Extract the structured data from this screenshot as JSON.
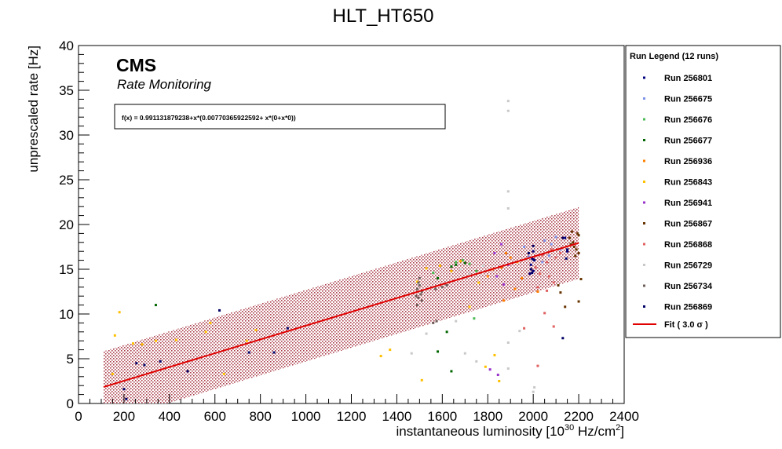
{
  "chart_data": {
    "type": "scatter",
    "title": "HLT_HT650",
    "xlabel": "instantaneous luminosity [10",
    "xlabel_sup": "30",
    "xlabel_mid": " Hz/cm",
    "xlabel_sup2": "2",
    "xlabel_end": "]",
    "ylabel": "unprescaled rate [Hz]",
    "xlim": [
      0,
      2400
    ],
    "ylim": [
      0,
      40
    ],
    "x_ticks": [
      0,
      200,
      400,
      600,
      800,
      1000,
      1200,
      1400,
      1600,
      1800,
      2000,
      2200,
      2400
    ],
    "y_ticks": [
      0,
      5,
      10,
      15,
      20,
      25,
      30,
      35,
      40
    ],
    "cms_label": "CMS",
    "cms_sublabel": "Rate Monitoring",
    "fit_formula": "f(x) = 0.991131879238+x*(0.00770365922592+ x*(0+x*0))",
    "fit": {
      "intercept": 0.991131879238,
      "slope": 0.00770365922592,
      "x_range": [
        110,
        2200
      ],
      "sigma": 3.0,
      "band_halfwidth": 4.0,
      "color": "#e00000",
      "band_color": "#9b1b2a"
    },
    "legend_title": "Run Legend (12 runs)",
    "legend_position": "right",
    "fit_legend_label": "Fit ( 3.0  σ )",
    "series": [
      {
        "name": "Run 256801",
        "color": "#00007f",
        "points": [
          [
            1990,
            15.5
          ],
          [
            2000,
            17.0
          ],
          [
            1985,
            14.5
          ],
          [
            2150,
            17.0
          ],
          [
            1995,
            16.2
          ],
          [
            2005,
            16.0
          ],
          [
            2140,
            18.5
          ],
          [
            2000,
            14.8
          ]
        ]
      },
      {
        "name": "Run 256675",
        "color": "#8093e8",
        "points": [
          [
            1960,
            17.5
          ],
          [
            2050,
            18.2
          ],
          [
            2080,
            17.8
          ],
          [
            2100,
            18.6
          ],
          [
            1980,
            16.4
          ],
          [
            2040,
            15.8
          ],
          [
            2120,
            17.2
          ],
          [
            2070,
            16.5
          ]
        ]
      },
      {
        "name": "Run 256676",
        "color": "#4bbb55",
        "points": [
          [
            1660,
            15.8
          ],
          [
            1690,
            16.0
          ],
          [
            1720,
            15.6
          ],
          [
            1750,
            14.8
          ],
          [
            1560,
            14.6
          ],
          [
            1740,
            9.5
          ]
        ]
      },
      {
        "name": "Run 256677",
        "color": "#006600",
        "points": [
          [
            340,
            11.0
          ],
          [
            1640,
            15.3
          ],
          [
            1660,
            15.5
          ],
          [
            1700,
            15.7
          ],
          [
            1580,
            14.0
          ],
          [
            1620,
            8.0
          ],
          [
            1580,
            5.8
          ],
          [
            1640,
            3.6
          ]
        ]
      },
      {
        "name": "Run 256936",
        "color": "#ff8000",
        "points": [
          [
            1900,
            16.3
          ],
          [
            1930,
            15.8
          ],
          [
            1860,
            15.2
          ],
          [
            1880,
            16.8
          ],
          [
            1820,
            15.0
          ],
          [
            1800,
            14.2
          ],
          [
            1950,
            14.0
          ],
          [
            1920,
            12.8
          ],
          [
            2020,
            12.5
          ],
          [
            1870,
            11.5
          ]
        ]
      },
      {
        "name": "Run 256843",
        "color": "#ffc000",
        "points": [
          [
            160,
            7.6
          ],
          [
            150,
            3.3
          ],
          [
            180,
            10.2
          ],
          [
            240,
            6.7
          ],
          [
            280,
            6.6
          ],
          [
            340,
            7.0
          ],
          [
            430,
            7.1
          ],
          [
            560,
            8.0
          ],
          [
            580,
            9.0
          ],
          [
            640,
            3.3
          ],
          [
            740,
            7.0
          ],
          [
            780,
            8.2
          ],
          [
            1330,
            5.3
          ],
          [
            1370,
            6.0
          ],
          [
            1510,
            2.6
          ],
          [
            1720,
            10.8
          ],
          [
            1760,
            13.5
          ],
          [
            1530,
            15.1
          ],
          [
            1490,
            13.6
          ],
          [
            1680,
            15.9
          ],
          [
            1640,
            14.8
          ],
          [
            1590,
            15.4
          ],
          [
            1790,
            4.1
          ],
          [
            1850,
            2.5
          ],
          [
            1830,
            5.4
          ]
        ]
      },
      {
        "name": "Run 256941",
        "color": "#9933cc",
        "points": [
          [
            1830,
            16.8
          ],
          [
            1860,
            17.8
          ],
          [
            1890,
            15.5
          ],
          [
            1840,
            14.2
          ],
          [
            1870,
            13.3
          ],
          [
            1810,
            3.8
          ],
          [
            1845,
            3.2
          ]
        ]
      },
      {
        "name": "Run 256867",
        "color": "#663300",
        "points": [
          [
            2160,
            18.5
          ],
          [
            2180,
            17.5
          ],
          [
            2195,
            19.0
          ],
          [
            2200,
            16.8
          ],
          [
            2175,
            18.0
          ],
          [
            2190,
            17.2
          ],
          [
            2165,
            17.8
          ],
          [
            2200,
            18.8
          ],
          [
            2185,
            16.5
          ],
          [
            2170,
            19.2
          ],
          [
            2210,
            13.9
          ],
          [
            2200,
            11.4
          ],
          [
            2110,
            13.2
          ],
          [
            2120,
            12.4
          ],
          [
            2140,
            10.8
          ]
        ]
      },
      {
        "name": "Run 256868",
        "color": "#e06060",
        "points": [
          [
            2040,
            16.5
          ],
          [
            2060,
            15.8
          ],
          [
            2080,
            17.2
          ],
          [
            2100,
            16.3
          ],
          [
            2120,
            16.8
          ],
          [
            2010,
            15.2
          ],
          [
            2030,
            14.5
          ],
          [
            2070,
            14.2
          ],
          [
            2090,
            13.5
          ],
          [
            2020,
            13.0
          ],
          [
            2060,
            12.6
          ],
          [
            2050,
            10.1
          ],
          [
            2090,
            8.6
          ],
          [
            1960,
            8.4
          ],
          [
            2020,
            4.2
          ]
        ]
      },
      {
        "name": "Run 256729",
        "color": "#c8c8c8",
        "points": [
          [
            1890,
            33.8
          ],
          [
            1890,
            32.7
          ],
          [
            1890,
            23.7
          ],
          [
            1890,
            21.8
          ],
          [
            1890,
            6.8
          ],
          [
            1890,
            3.9
          ],
          [
            1750,
            4.7
          ],
          [
            1700,
            5.6
          ],
          [
            1465,
            5.6
          ],
          [
            1530,
            7.8
          ],
          [
            1660,
            9.2
          ],
          [
            1940,
            8.1
          ],
          [
            2005,
            1.8
          ],
          [
            2000,
            1.3
          ],
          [
            1680,
            15.0
          ],
          [
            1720,
            14.5
          ],
          [
            1780,
            15.4
          ]
        ]
      },
      {
        "name": "Run 256734",
        "color": "#6e5e5a",
        "points": [
          [
            1490,
            12.8
          ],
          [
            1500,
            13.2
          ],
          [
            1495,
            11.8
          ],
          [
            1505,
            12.2
          ],
          [
            1490,
            11.0
          ],
          [
            1510,
            12.5
          ],
          [
            1500,
            14.0
          ],
          [
            1485,
            12.0
          ],
          [
            1495,
            13.5
          ],
          [
            1510,
            11.5
          ],
          [
            1560,
            9.0
          ],
          [
            1575,
            9.2
          ],
          [
            1570,
            12.8
          ],
          [
            1600,
            13.0
          ],
          [
            1620,
            13.2
          ]
        ]
      },
      {
        "name": "Run 256869",
        "color": "#000066",
        "points": [
          [
            200,
            1.6
          ],
          [
            210,
            0.5
          ],
          [
            255,
            4.5
          ],
          [
            290,
            4.3
          ],
          [
            360,
            4.7
          ],
          [
            480,
            3.6
          ],
          [
            620,
            10.4
          ],
          [
            750,
            5.7
          ],
          [
            860,
            5.7
          ],
          [
            920,
            8.4
          ],
          [
            1980,
            16.8
          ],
          [
            1990,
            15.0
          ],
          [
            2000,
            16.1
          ],
          [
            1995,
            14.6
          ],
          [
            2000,
            17.6
          ],
          [
            2130,
            7.3
          ],
          [
            2150,
            17.2
          ],
          [
            2145,
            16.2
          ],
          [
            2130,
            18.5
          ]
        ]
      }
    ]
  }
}
